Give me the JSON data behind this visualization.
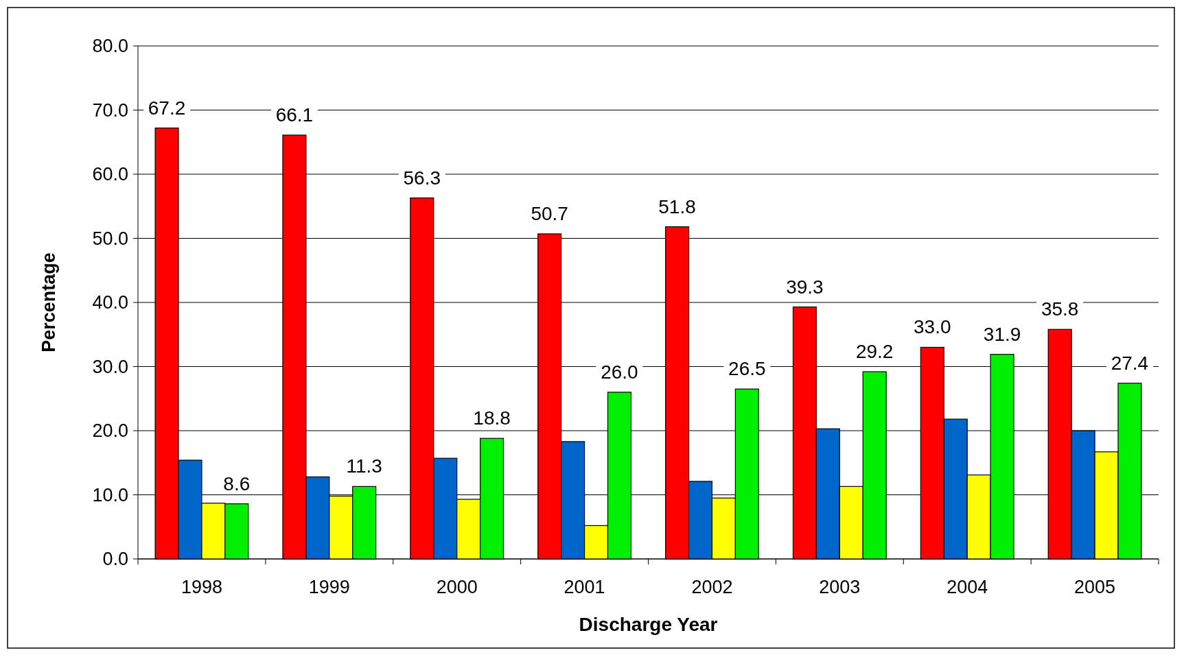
{
  "chart_data": {
    "type": "bar",
    "xlabel": "Discharge Year",
    "ylabel": "Percentage",
    "categories": [
      "1998",
      "1999",
      "2000",
      "2001",
      "2002",
      "2003",
      "2004",
      "2005"
    ],
    "series": [
      {
        "color": "#ff0000",
        "values": [
          67.2,
          66.1,
          56.3,
          50.7,
          51.8,
          39.3,
          33.0,
          35.8
        ],
        "value_labels": [
          "67.2",
          "66.1",
          "56.3",
          "50.7",
          "51.8",
          "39.3",
          "33.0",
          "35.8"
        ]
      },
      {
        "color": "#0066cc",
        "values": [
          15.4,
          12.8,
          15.7,
          18.3,
          12.1,
          20.3,
          21.8,
          20.0
        ]
      },
      {
        "color": "#ffff00",
        "values": [
          8.7,
          9.8,
          9.3,
          5.2,
          9.5,
          11.3,
          13.1,
          16.7
        ]
      },
      {
        "color": "#00ee00",
        "values": [
          8.6,
          11.3,
          18.8,
          26.0,
          26.5,
          29.2,
          31.9,
          27.4
        ],
        "value_labels": [
          "8.6",
          "11.3",
          "18.8",
          "26.0",
          "26.5",
          "29.2",
          "31.9",
          "27.4"
        ]
      }
    ],
    "ylim": [
      0,
      80
    ],
    "yticks": [
      {
        "value": 0,
        "label": "0.0"
      },
      {
        "value": 10,
        "label": "10.0"
      },
      {
        "value": 20,
        "label": "20.0"
      },
      {
        "value": 30,
        "label": "30.0"
      },
      {
        "value": 40,
        "label": "40.0"
      },
      {
        "value": 50,
        "label": "50.0"
      },
      {
        "value": 60,
        "label": "60.0"
      },
      {
        "value": 70,
        "label": "70.0"
      },
      {
        "value": 80,
        "label": "80.0"
      }
    ],
    "grid": "y"
  }
}
